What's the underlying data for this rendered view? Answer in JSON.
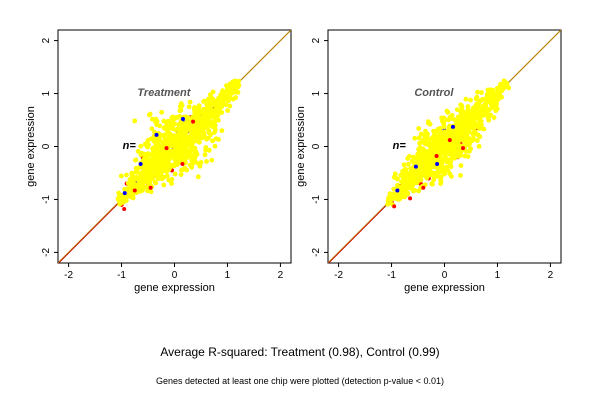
{
  "figure": {
    "caption_main": "Average R-squared: Treatment (0.98), Control (0.99)",
    "caption_foot": "Genes detected at least one chip were plotted (detection p-value < 0.01)"
  },
  "chart_data": [
    {
      "type": "scatter",
      "panel_label": "Treatment",
      "n_label": "n=",
      "xlabel": "gene expression",
      "ylabel": "gene expression",
      "xlim": [
        -2.2,
        2.2
      ],
      "ylim": [
        -2.2,
        2.2
      ],
      "xticks": [
        -2,
        -1,
        0,
        1,
        2
      ],
      "yticks": [
        -2,
        -1,
        0,
        1,
        2
      ],
      "identity_line": {
        "color": "#b8860b",
        "accent": "#cc0000"
      },
      "series": [
        {
          "color": "#0000ff",
          "points": [
            [
              -0.9,
              -0.95
            ],
            [
              -0.6,
              -0.4
            ],
            [
              -0.3,
              0.15
            ],
            [
              0.2,
              0.45
            ],
            [
              0.5,
              0.6
            ],
            [
              0.05,
              0.3
            ],
            [
              -0.7,
              -0.65
            ],
            [
              0.35,
              0.1
            ],
            [
              0.65,
              0.75
            ],
            [
              -0.2,
              -0.35
            ]
          ]
        },
        {
          "color": "#ff0000",
          "points": [
            [
              -1.0,
              -1.1
            ],
            [
              -0.8,
              -0.75
            ],
            [
              -0.5,
              -0.7
            ],
            [
              -0.2,
              0.05
            ],
            [
              0.1,
              -0.25
            ],
            [
              0.3,
              0.55
            ],
            [
              0.6,
              0.4
            ],
            [
              0.9,
              0.95
            ],
            [
              -0.6,
              -0.2
            ],
            [
              0.4,
              0.65
            ],
            [
              -0.35,
              -0.55
            ],
            [
              0.15,
              0.35
            ],
            [
              -0.05,
              -0.45
            ],
            [
              0.75,
              0.6
            ],
            [
              -0.9,
              -0.7
            ],
            [
              0.0,
              0.2
            ]
          ]
        },
        {
          "color": "#ffff00",
          "center_band": [
            [
              -1.05,
              -1.05
            ],
            [
              1.2,
              1.2
            ]
          ],
          "spread": 0.28,
          "outliers": [
            [
              0.5,
              -0.3
            ],
            [
              -0.1,
              0.45
            ],
            [
              -0.8,
              -0.55
            ],
            [
              0.3,
              -0.1
            ],
            [
              0.05,
              0.55
            ],
            [
              -0.55,
              -0.25
            ],
            [
              0.55,
              0.85
            ],
            [
              0.8,
              0.6
            ],
            [
              -0.3,
              0.25
            ],
            [
              0.2,
              -0.15
            ]
          ]
        }
      ]
    },
    {
      "type": "scatter",
      "panel_label": "Control",
      "n_label": "n=",
      "xlabel": "gene expression",
      "ylabel": "gene expression",
      "xlim": [
        -2.2,
        2.2
      ],
      "ylim": [
        -2.2,
        2.2
      ],
      "xticks": [
        -2,
        -1,
        0,
        1,
        2
      ],
      "yticks": [
        -2,
        -1,
        0,
        1,
        2
      ],
      "identity_line": {
        "color": "#b8860b",
        "accent": "#cc0000"
      },
      "series": [
        {
          "color": "#0000ff",
          "points": [
            [
              -0.85,
              -0.9
            ],
            [
              -0.5,
              -0.45
            ],
            [
              -0.1,
              -0.4
            ],
            [
              0.2,
              0.3
            ],
            [
              0.45,
              0.15
            ],
            [
              0.65,
              0.55
            ],
            [
              0.0,
              0.3
            ],
            [
              -0.65,
              -0.7
            ]
          ]
        },
        {
          "color": "#ff0000",
          "points": [
            [
              -1.0,
              -1.05
            ],
            [
              -0.7,
              -0.9
            ],
            [
              -0.45,
              -0.7
            ],
            [
              -0.2,
              -0.1
            ],
            [
              0.05,
              0.2
            ],
            [
              0.3,
              0.05
            ],
            [
              0.5,
              0.55
            ],
            [
              0.8,
              0.85
            ],
            [
              -0.6,
              -0.5
            ],
            [
              0.25,
              -0.2
            ],
            [
              -0.3,
              -0.6
            ],
            [
              0.6,
              0.35
            ],
            [
              0.95,
              0.9
            ],
            [
              -0.85,
              -0.75
            ]
          ]
        },
        {
          "color": "#ffff00",
          "center_band": [
            [
              -1.05,
              -1.05
            ],
            [
              1.2,
              1.2
            ]
          ],
          "spread": 0.24,
          "outliers": [
            [
              0.45,
              0.7
            ],
            [
              -0.4,
              -0.15
            ],
            [
              0.1,
              0.55
            ],
            [
              -0.75,
              -0.95
            ],
            [
              0.35,
              -0.05
            ],
            [
              0.6,
              0.9
            ],
            [
              -0.2,
              0.2
            ]
          ]
        }
      ]
    }
  ]
}
